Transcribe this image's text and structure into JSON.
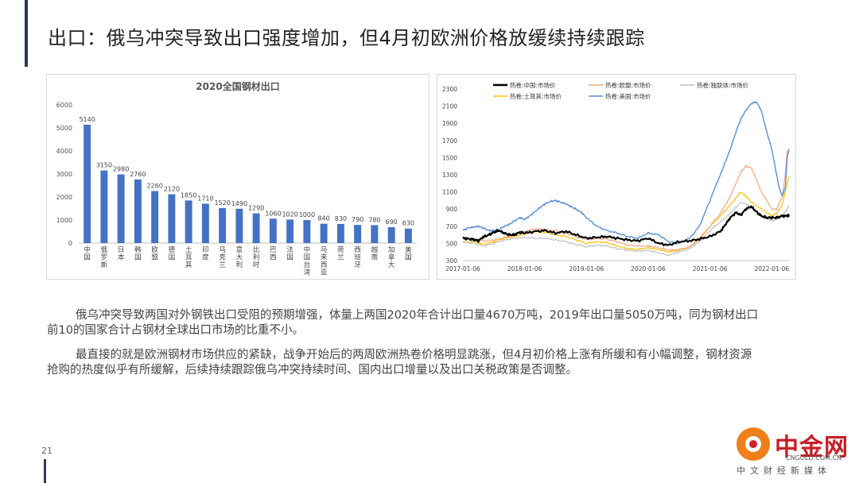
{
  "page": {
    "title": "出口：俄乌冲突导致出口强度增加，但4月初欧洲价格放缓续持续跟踪",
    "page_number": "21",
    "paragraphs": [
      "俄乌冲突导致两国对外钢铁出口受阻的预期增强，体量上两国2020年合计出口量4670万吨，2019年出口量5050万吨，同为钢材出口前10的国家合计占钢材全球出口市场的比重不小。",
      "最直接的就是欧洲钢材市场供应的紧缺，战争开始后的两周欧洲热卷价格明显跳涨，但4月初价格上涨有所缓和有小幅调整，钢材资源抢购的热度似乎有所缓解，后续持续跟踪俄乌冲突持续时间、国内出口增量以及出口关税政策是否调整。"
    ],
    "logo": {
      "name": "中金网",
      "url": "CNGOLD.COM.CN",
      "slogan": "中文财经新媒体"
    }
  },
  "chart_data": [
    {
      "type": "bar",
      "title": "2020全国钢材出口",
      "categories": [
        "中国",
        "俄罗斯",
        "日本",
        "韩国",
        "欧盟",
        "德国",
        "土耳其",
        "印度",
        "乌克兰",
        "意大利",
        "比利时",
        "巴西",
        "法国",
        "中国台湾",
        "马来西亚",
        "荷兰",
        "西班牙",
        "越南",
        "加拿大",
        "美国"
      ],
      "values": [
        5140,
        3150,
        2980,
        2760,
        2260,
        2120,
        1850,
        1710,
        1520,
        1490,
        1290,
        1060,
        1020,
        1000,
        840,
        830,
        790,
        780,
        690,
        630
      ],
      "ylim": [
        0,
        6000
      ],
      "yticks": [
        0,
        1000,
        2000,
        3000,
        4000,
        5000,
        6000
      ],
      "color": "#4472c4",
      "data_labels": true,
      "grid": false
    },
    {
      "type": "line",
      "title": "",
      "ylim": [
        300,
        2300
      ],
      "yticks": [
        300,
        500,
        700,
        900,
        1100,
        1300,
        1500,
        1700,
        1900,
        2100,
        2300
      ],
      "x_tick_labels": [
        "2017-01-06",
        "2018-01-06",
        "2019-01-06",
        "2020-01-06",
        "2021-01-06",
        "2022-01-06"
      ],
      "x_ticks_years": [
        2017.0,
        2018.0,
        2019.0,
        2020.0,
        2021.0,
        2022.0
      ],
      "xlim": [
        2017.0,
        2022.28
      ],
      "legend_position": "top",
      "series": [
        {
          "name": "热卷:中国:市场价",
          "color": "#000000",
          "width": 2.2,
          "x": [
            2017.0,
            2017.08,
            2017.17,
            2017.25,
            2017.33,
            2017.42,
            2017.5,
            2017.58,
            2017.67,
            2017.75,
            2017.83,
            2017.92,
            2018.0,
            2018.17,
            2018.33,
            2018.5,
            2018.67,
            2018.83,
            2019.0,
            2019.17,
            2019.33,
            2019.5,
            2019.67,
            2019.83,
            2020.0,
            2020.17,
            2020.33,
            2020.5,
            2020.67,
            2020.83,
            2021.0,
            2021.17,
            2021.25,
            2021.33,
            2021.42,
            2021.5,
            2021.58,
            2021.67,
            2021.75,
            2021.83,
            2021.92,
            2022.0,
            2022.08,
            2022.17,
            2022.25,
            2022.28
          ],
          "y": [
            560,
            555,
            545,
            530,
            575,
            600,
            630,
            650,
            620,
            600,
            600,
            630,
            620,
            640,
            650,
            620,
            640,
            600,
            560,
            570,
            580,
            560,
            540,
            530,
            560,
            500,
            480,
            520,
            530,
            550,
            580,
            640,
            720,
            800,
            860,
            830,
            900,
            930,
            870,
            820,
            800,
            800,
            800,
            820,
            820,
            830
          ]
        },
        {
          "name": "热卷:欧盟:市场价",
          "color": "#f4a582",
          "width": 1.2,
          "x": [
            2017.0,
            2017.17,
            2017.33,
            2017.5,
            2017.67,
            2017.83,
            2018.0,
            2018.17,
            2018.33,
            2018.5,
            2018.67,
            2018.83,
            2019.0,
            2019.17,
            2019.33,
            2019.5,
            2019.67,
            2019.83,
            2020.0,
            2020.17,
            2020.33,
            2020.5,
            2020.67,
            2020.83,
            2021.0,
            2021.17,
            2021.25,
            2021.33,
            2021.42,
            2021.5,
            2021.58,
            2021.67,
            2021.75,
            2021.83,
            2021.92,
            2022.0,
            2022.08,
            2022.17,
            2022.22,
            2022.25,
            2022.28
          ],
          "y": [
            550,
            560,
            530,
            540,
            570,
            590,
            640,
            670,
            660,
            650,
            620,
            580,
            550,
            560,
            550,
            520,
            480,
            470,
            470,
            450,
            420,
            430,
            460,
            540,
            700,
            850,
            950,
            1050,
            1200,
            1330,
            1400,
            1380,
            1250,
            1100,
            1000,
            900,
            900,
            1050,
            1300,
            1580,
            1550
          ]
        },
        {
          "name": "热卷:独联体:市场价",
          "color": "#bfbfbf",
          "width": 1.2,
          "x": [
            2017.0,
            2017.17,
            2017.33,
            2017.5,
            2017.67,
            2017.83,
            2018.0,
            2018.17,
            2018.33,
            2018.5,
            2018.67,
            2018.83,
            2019.0,
            2019.17,
            2019.33,
            2019.5,
            2019.67,
            2019.83,
            2020.0,
            2020.17,
            2020.33,
            2020.5,
            2020.67,
            2020.83,
            2021.0,
            2021.17,
            2021.33,
            2021.5,
            2021.67,
            2021.83,
            2022.0,
            2022.08,
            2022.17,
            2022.25,
            2022.28
          ],
          "y": [
            520,
            500,
            470,
            500,
            540,
            560,
            570,
            560,
            560,
            540,
            520,
            490,
            460,
            480,
            470,
            440,
            420,
            410,
            420,
            390,
            360,
            400,
            440,
            520,
            650,
            750,
            850,
            980,
            930,
            820,
            760,
            780,
            820,
            900,
            940
          ]
        },
        {
          "name": "热卷:土耳其:市场价",
          "color": "#ffc000",
          "width": 1.2,
          "x": [
            2017.0,
            2017.17,
            2017.33,
            2017.5,
            2017.67,
            2017.83,
            2018.0,
            2018.17,
            2018.33,
            2018.5,
            2018.67,
            2018.83,
            2019.0,
            2019.17,
            2019.33,
            2019.5,
            2019.67,
            2019.83,
            2020.0,
            2020.17,
            2020.33,
            2020.5,
            2020.67,
            2020.83,
            2021.0,
            2021.17,
            2021.33,
            2021.5,
            2021.58,
            2021.67,
            2021.83,
            2022.0,
            2022.08,
            2022.17,
            2022.25,
            2022.28
          ],
          "y": [
            510,
            520,
            490,
            520,
            560,
            580,
            610,
            640,
            630,
            600,
            580,
            540,
            500,
            520,
            510,
            470,
            440,
            430,
            450,
            430,
            400,
            420,
            460,
            560,
            700,
            820,
            950,
            1100,
            1050,
            980,
            900,
            820,
            850,
            950,
            1200,
            1280
          ]
        },
        {
          "name": "热卷:美国:市场价",
          "color": "#5b8fd6",
          "width": 1.4,
          "x": [
            2017.0,
            2017.08,
            2017.17,
            2017.25,
            2017.33,
            2017.42,
            2017.5,
            2017.58,
            2017.67,
            2017.75,
            2017.83,
            2017.92,
            2018.0,
            2018.08,
            2018.17,
            2018.25,
            2018.33,
            2018.42,
            2018.5,
            2018.58,
            2018.67,
            2018.75,
            2018.83,
            2018.92,
            2019.0,
            2019.17,
            2019.33,
            2019.5,
            2019.67,
            2019.83,
            2020.0,
            2020.17,
            2020.33,
            2020.5,
            2020.67,
            2020.83,
            2021.0,
            2021.08,
            2021.17,
            2021.25,
            2021.33,
            2021.42,
            2021.5,
            2021.58,
            2021.67,
            2021.75,
            2021.83,
            2021.92,
            2022.0,
            2022.08,
            2022.12,
            2022.17,
            2022.22,
            2022.25,
            2022.28
          ],
          "y": [
            650,
            680,
            690,
            700,
            680,
            650,
            650,
            660,
            700,
            720,
            760,
            800,
            780,
            820,
            870,
            920,
            960,
            990,
            1000,
            980,
            960,
            930,
            900,
            860,
            800,
            700,
            650,
            620,
            580,
            560,
            620,
            600,
            520,
            500,
            560,
            700,
            1000,
            1150,
            1300,
            1450,
            1600,
            1800,
            1950,
            2050,
            2130,
            2150,
            2050,
            1800,
            1600,
            1300,
            1150,
            1050,
            1150,
            1500,
            1600
          ]
        }
      ]
    }
  ]
}
